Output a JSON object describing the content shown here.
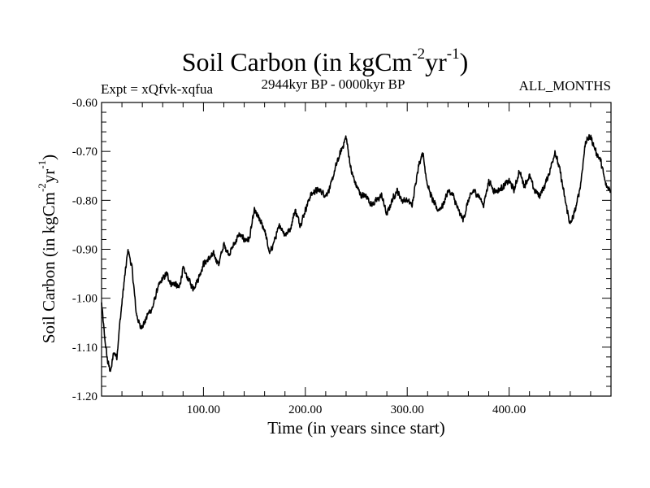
{
  "header": {
    "title_main": "Soil Carbon (in kgCm",
    "title_exp1": "-2",
    "title_mid": "yr",
    "title_exp2": "-1",
    "title_end": ")",
    "experiment": "Expt = xQfvk-xqfua",
    "period": "2944kyr BP - 0000kyr BP",
    "months": "ALL_MONTHS"
  },
  "chart_data": {
    "type": "line",
    "title": "Soil Carbon (in kgCm-2yr-1)",
    "xlabel": "Time (in years since start)",
    "ylabel": "Soil Carbon (in kgCm-2yr-1)",
    "ylabel_parts": {
      "main": "Soil Carbon (in kgCm",
      "exp1": "-2",
      "mid": "yr",
      "exp2": "-1",
      "end": ")"
    },
    "xlim": [
      0,
      500
    ],
    "ylim": [
      -1.2,
      -0.6
    ],
    "x_ticks": [
      100,
      200,
      300,
      400
    ],
    "x_tick_labels": [
      "100.00",
      "200.00",
      "300.00",
      "400.00"
    ],
    "y_ticks": [
      -1.2,
      -1.1,
      -1.0,
      -0.9,
      -0.8,
      -0.7,
      -0.6
    ],
    "y_tick_labels": [
      "-1.20",
      "-1.10",
      "-1.00",
      "-0.90",
      "-0.80",
      "-0.70",
      "-0.60"
    ],
    "series": [
      {
        "name": "Soil Carbon",
        "color": "#000000",
        "noise_amplitude": 0.008,
        "x": [
          0,
          3,
          6,
          9,
          12,
          15,
          18,
          22,
          26,
          30,
          34,
          38,
          42,
          46,
          50,
          55,
          60,
          64,
          68,
          72,
          76,
          80,
          85,
          90,
          95,
          100,
          105,
          110,
          115,
          120,
          125,
          130,
          135,
          140,
          145,
          150,
          155,
          160,
          165,
          170,
          175,
          180,
          185,
          190,
          195,
          200,
          205,
          210,
          215,
          220,
          225,
          230,
          235,
          240,
          245,
          250,
          255,
          260,
          265,
          270,
          275,
          280,
          285,
          290,
          295,
          300,
          305,
          310,
          315,
          320,
          325,
          330,
          335,
          340,
          345,
          350,
          355,
          360,
          365,
          370,
          375,
          380,
          385,
          390,
          395,
          400,
          405,
          410,
          415,
          420,
          425,
          430,
          435,
          440,
          445,
          450,
          455,
          460,
          465,
          470,
          475,
          480,
          485,
          490,
          495,
          500
        ],
        "y": [
          -1.01,
          -1.08,
          -1.13,
          -1.15,
          -1.11,
          -1.12,
          -1.05,
          -0.97,
          -0.9,
          -0.94,
          -1.03,
          -1.06,
          -1.05,
          -1.03,
          -1.02,
          -0.98,
          -0.96,
          -0.95,
          -0.97,
          -0.97,
          -0.98,
          -0.94,
          -0.96,
          -0.98,
          -0.96,
          -0.93,
          -0.92,
          -0.91,
          -0.93,
          -0.89,
          -0.91,
          -0.89,
          -0.87,
          -0.88,
          -0.88,
          -0.82,
          -0.84,
          -0.86,
          -0.91,
          -0.88,
          -0.85,
          -0.87,
          -0.86,
          -0.82,
          -0.85,
          -0.82,
          -0.79,
          -0.78,
          -0.78,
          -0.79,
          -0.77,
          -0.73,
          -0.7,
          -0.67,
          -0.74,
          -0.77,
          -0.79,
          -0.79,
          -0.81,
          -0.8,
          -0.79,
          -0.83,
          -0.8,
          -0.78,
          -0.8,
          -0.8,
          -0.81,
          -0.74,
          -0.7,
          -0.77,
          -0.8,
          -0.82,
          -0.81,
          -0.78,
          -0.79,
          -0.82,
          -0.84,
          -0.8,
          -0.78,
          -0.79,
          -0.81,
          -0.76,
          -0.78,
          -0.78,
          -0.77,
          -0.76,
          -0.78,
          -0.74,
          -0.77,
          -0.75,
          -0.78,
          -0.79,
          -0.77,
          -0.74,
          -0.7,
          -0.74,
          -0.8,
          -0.85,
          -0.82,
          -0.77,
          -0.68,
          -0.67,
          -0.7,
          -0.72,
          -0.77,
          -0.78
        ]
      }
    ]
  }
}
